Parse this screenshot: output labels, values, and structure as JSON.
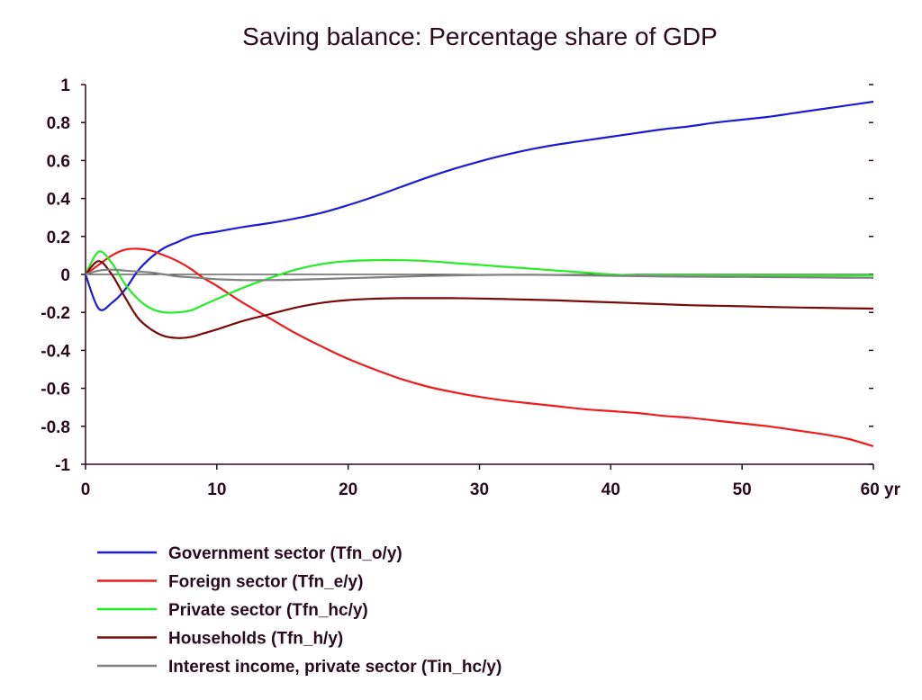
{
  "chart_data": {
    "type": "line",
    "title": "Saving balance: Percentage share of GDP",
    "xlabel": "",
    "ylabel": "",
    "xlim": [
      0,
      60
    ],
    "ylim": [
      -1,
      1
    ],
    "x_ticks": [
      0,
      10,
      20,
      30,
      40,
      50,
      60
    ],
    "x_tick_labels": [
      "0",
      "10",
      "20",
      "30",
      "40",
      "50",
      "60 yr"
    ],
    "y_ticks": [
      1,
      0.8,
      0.6,
      0.4,
      0.2,
      0,
      -0.2,
      -0.4,
      -0.6,
      -0.8,
      -1
    ],
    "y_tick_labels": [
      "1",
      "0.8",
      "0.6",
      "0.4",
      "0.2",
      "0",
      "-0.2",
      "-0.4",
      "-0.6",
      "-0.8",
      "-1"
    ],
    "grid": false,
    "zero_line": true,
    "legend_position": "bottom",
    "x": [
      0,
      1,
      2,
      3,
      4,
      5,
      6,
      7,
      8,
      9,
      10,
      12,
      14,
      16,
      18,
      20,
      22,
      24,
      26,
      28,
      30,
      32,
      34,
      36,
      38,
      40,
      42,
      44,
      46,
      48,
      50,
      52,
      54,
      56,
      58,
      60
    ],
    "series": [
      {
        "name": "Government sector (Tfn_o/y)",
        "color": "#1c1cd6",
        "values": [
          0,
          -0.18,
          -0.15,
          -0.08,
          0.02,
          0.09,
          0.14,
          0.17,
          0.2,
          0.215,
          0.225,
          0.25,
          0.27,
          0.295,
          0.325,
          0.365,
          0.41,
          0.46,
          0.51,
          0.555,
          0.595,
          0.63,
          0.66,
          0.685,
          0.705,
          0.725,
          0.745,
          0.765,
          0.78,
          0.8,
          0.815,
          0.83,
          0.85,
          0.87,
          0.89,
          0.91
        ]
      },
      {
        "name": "Foreign sector (Tfn_e/y)",
        "color": "#ee1c1c",
        "values": [
          0,
          0.05,
          0.1,
          0.13,
          0.135,
          0.125,
          0.1,
          0.07,
          0.03,
          -0.02,
          -0.06,
          -0.15,
          -0.23,
          -0.31,
          -0.38,
          -0.445,
          -0.5,
          -0.55,
          -0.59,
          -0.62,
          -0.645,
          -0.665,
          -0.68,
          -0.695,
          -0.71,
          -0.72,
          -0.73,
          -0.745,
          -0.755,
          -0.77,
          -0.785,
          -0.8,
          -0.82,
          -0.84,
          -0.865,
          -0.905
        ]
      },
      {
        "name": "Private sector (Tfn_hc/y)",
        "color": "#22ee22",
        "values": [
          0,
          0.12,
          0.06,
          -0.05,
          -0.13,
          -0.18,
          -0.2,
          -0.2,
          -0.19,
          -0.16,
          -0.13,
          -0.07,
          -0.02,
          0.025,
          0.055,
          0.07,
          0.075,
          0.075,
          0.07,
          0.06,
          0.05,
          0.04,
          0.03,
          0.02,
          0.01,
          0.0,
          -0.005,
          -0.005,
          -0.005,
          -0.005,
          -0.005,
          -0.005,
          -0.005,
          -0.005,
          -0.005,
          -0.005
        ]
      },
      {
        "name": "Households (Tfn_h/y)",
        "color": "#7a0a0a",
        "values": [
          0,
          0.07,
          0.0,
          -0.12,
          -0.23,
          -0.29,
          -0.325,
          -0.335,
          -0.33,
          -0.31,
          -0.29,
          -0.245,
          -0.21,
          -0.175,
          -0.15,
          -0.135,
          -0.128,
          -0.125,
          -0.125,
          -0.125,
          -0.127,
          -0.13,
          -0.133,
          -0.137,
          -0.142,
          -0.147,
          -0.152,
          -0.157,
          -0.162,
          -0.165,
          -0.168,
          -0.171,
          -0.174,
          -0.176,
          -0.178,
          -0.18
        ]
      },
      {
        "name": "Interest income, private sector (Tin_hc/y)",
        "color": "#808080",
        "values": [
          0,
          0.02,
          0.025,
          0.02,
          0.015,
          0.01,
          0.0,
          -0.01,
          -0.015,
          -0.02,
          -0.025,
          -0.03,
          -0.03,
          -0.028,
          -0.024,
          -0.02,
          -0.016,
          -0.012,
          -0.008,
          -0.005,
          -0.003,
          -0.002,
          -0.002,
          -0.003,
          -0.005,
          -0.007,
          -0.009,
          -0.011,
          -0.012,
          -0.013,
          -0.013,
          -0.014,
          -0.015,
          -0.016,
          -0.017,
          -0.018
        ]
      }
    ]
  }
}
